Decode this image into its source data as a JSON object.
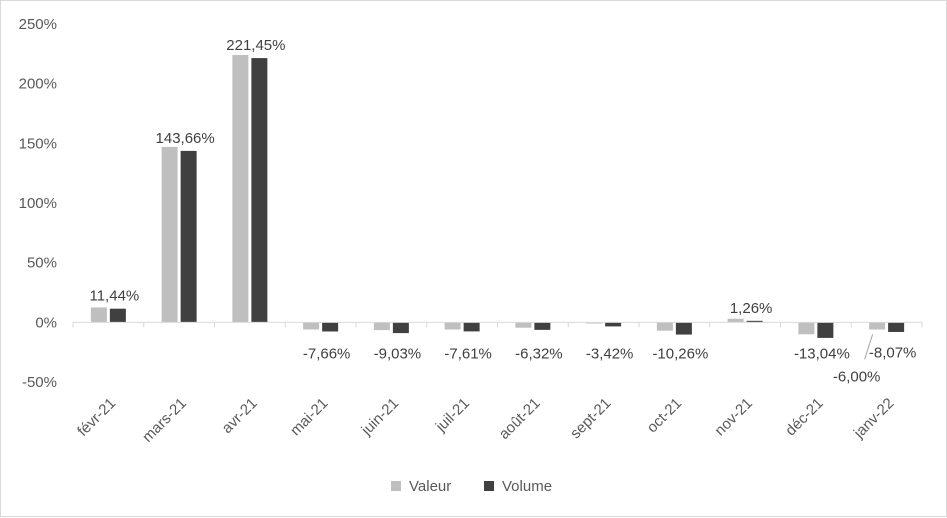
{
  "chart_data": {
    "type": "bar",
    "categories": [
      "févr-21",
      "mars-21",
      "avr-21",
      "mai-21",
      "juin-21",
      "juil-21",
      "août-21",
      "sept-21",
      "oct-21",
      "nov-21",
      "déc-21",
      "janv-22"
    ],
    "series": [
      {
        "name": "Valeur",
        "color": "#bfbfbf",
        "values": [
          12.5,
          147,
          224,
          -6.0,
          -6.5,
          -6.0,
          -4.5,
          -1.0,
          -7.0,
          3.0,
          -10.0,
          -6.0
        ]
      },
      {
        "name": "Volume",
        "color": "#404040",
        "values": [
          11.44,
          143.66,
          221.45,
          -7.66,
          -9.03,
          -7.61,
          -6.32,
          -3.42,
          -10.26,
          1.26,
          -13.04,
          -8.07
        ]
      }
    ],
    "data_labels": [
      "11,44%",
      "143,66%",
      "221,45%",
      "-7,66%",
      "-9,03%",
      "-7,61%",
      "-6,32%",
      "-3,42%",
      "-10,26%",
      "1,26%",
      "-13,04%",
      "-8,07%"
    ],
    "extra_label": "-6,00%",
    "ylim": [
      -50,
      250
    ],
    "y_ticks": [
      -50,
      0,
      50,
      100,
      150,
      200,
      250
    ],
    "y_tick_labels": [
      "-50%",
      "0%",
      "50%",
      "100%",
      "150%",
      "200%",
      "250%"
    ],
    "gridlines": false,
    "legend_position": "bottom"
  }
}
